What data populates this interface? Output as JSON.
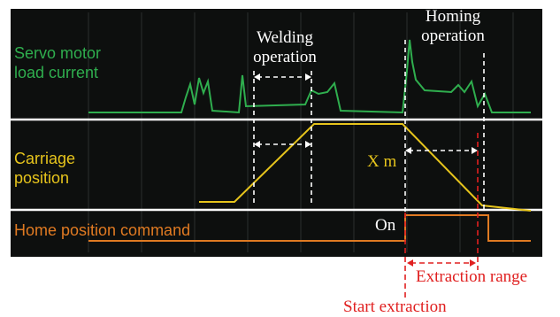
{
  "signals": [
    {
      "label_lines": [
        "Servo motor",
        "load current"
      ]
    },
    {
      "label_lines": [
        "Carriage",
        "position"
      ]
    },
    {
      "label_lines": [
        "Home position command"
      ]
    }
  ],
  "annotations": {
    "welding": [
      "Welding",
      "operation"
    ],
    "homing": [
      "Homing",
      "operation"
    ],
    "distance": "X m",
    "on": "On",
    "extraction_range": "Extraction range",
    "start_extraction": "Start extraction"
  }
}
